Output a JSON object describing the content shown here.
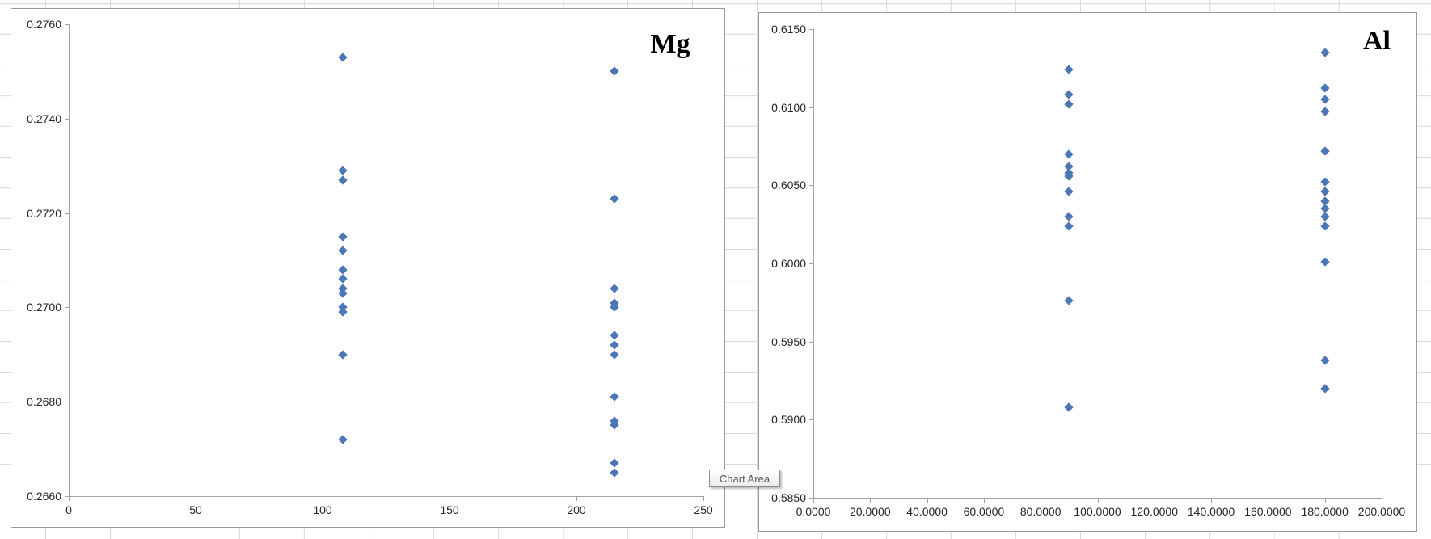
{
  "tooltip": {
    "label": "Chart Area"
  },
  "colors": {
    "marker": "#4c77b5",
    "axis": "#a3a3a3",
    "chart_border": "#9b9b9b",
    "sheet_gridline": "#d9d9d9",
    "tick_label": "#262626"
  },
  "chart_data": [
    {
      "type": "scatter",
      "title": "Mg",
      "xlabel": "",
      "ylabel": "",
      "xlim": [
        0,
        250
      ],
      "ylim": [
        0.266,
        0.276
      ],
      "grid": false,
      "legend": "none",
      "x_tick_labels": [
        "0",
        "50",
        "100",
        "150",
        "200",
        "250"
      ],
      "y_tick_labels": [
        "0.2760",
        "0.2740",
        "0.2720",
        "0.2700",
        "0.2680",
        "0.2660"
      ],
      "series": [
        {
          "name": "Mg",
          "points": [
            [
              108,
              0.2753
            ],
            [
              108,
              0.2729
            ],
            [
              108,
              0.2727
            ],
            [
              108,
              0.2715
            ],
            [
              108,
              0.2712
            ],
            [
              108,
              0.2708
            ],
            [
              108,
              0.2706
            ],
            [
              108,
              0.2704
            ],
            [
              108,
              0.2703
            ],
            [
              108,
              0.27
            ],
            [
              108,
              0.2699
            ],
            [
              108,
              0.269
            ],
            [
              108,
              0.2672
            ],
            [
              215,
              0.275
            ],
            [
              215,
              0.2723
            ],
            [
              215,
              0.2704
            ],
            [
              215,
              0.2701
            ],
            [
              215,
              0.27
            ],
            [
              215,
              0.2694
            ],
            [
              215,
              0.2692
            ],
            [
              215,
              0.269
            ],
            [
              215,
              0.2681
            ],
            [
              215,
              0.2676
            ],
            [
              215,
              0.2675
            ],
            [
              215,
              0.2667
            ],
            [
              215,
              0.2665
            ]
          ]
        }
      ]
    },
    {
      "type": "scatter",
      "title": "Al",
      "xlabel": "",
      "ylabel": "",
      "xlim": [
        0,
        200
      ],
      "ylim": [
        0.585,
        0.615
      ],
      "grid": false,
      "legend": "none",
      "x_tick_labels": [
        "0.0000",
        "20.0000",
        "40.0000",
        "60.0000",
        "80.0000",
        "100.0000",
        "120.0000",
        "140.0000",
        "160.0000",
        "180.0000",
        "200.0000"
      ],
      "y_tick_labels": [
        "0.6150",
        "0.6100",
        "0.6050",
        "0.6000",
        "0.5950",
        "0.5900",
        "0.5850"
      ],
      "series": [
        {
          "name": "Al",
          "points": [
            [
              90,
              0.6124
            ],
            [
              90,
              0.6108
            ],
            [
              90,
              0.6102
            ],
            [
              90,
              0.607
            ],
            [
              90,
              0.6062
            ],
            [
              90,
              0.6058
            ],
            [
              90,
              0.6056
            ],
            [
              90,
              0.6046
            ],
            [
              90,
              0.603
            ],
            [
              90,
              0.6024
            ],
            [
              90,
              0.5976
            ],
            [
              90,
              0.5908
            ],
            [
              180,
              0.6135
            ],
            [
              180,
              0.6112
            ],
            [
              180,
              0.6105
            ],
            [
              180,
              0.6097
            ],
            [
              180,
              0.6072
            ],
            [
              180,
              0.6052
            ],
            [
              180,
              0.6046
            ],
            [
              180,
              0.604
            ],
            [
              180,
              0.6035
            ],
            [
              180,
              0.603
            ],
            [
              180,
              0.6024
            ],
            [
              180,
              0.6001
            ],
            [
              180,
              0.5938
            ],
            [
              180,
              0.592
            ]
          ]
        }
      ]
    }
  ]
}
